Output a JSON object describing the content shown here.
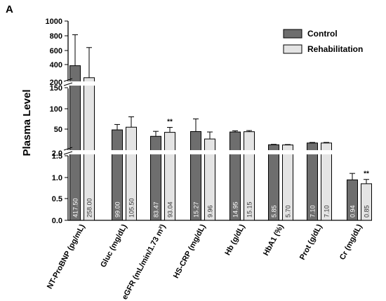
{
  "panel_label": "A",
  "colors": {
    "control": "#6e6e6e",
    "rehab": "#e4e4e4",
    "stroke": "#000000",
    "break_gap": "#ffffff"
  },
  "chart_data": {
    "type": "bar",
    "ylabel": "Plasma Level",
    "axis_breaks": true,
    "y_segments": [
      {
        "range": [
          0,
          1.5
        ],
        "ticks": [
          "0.0",
          "0.5",
          "1.0",
          "1.5"
        ]
      },
      {
        "range": [
          0,
          2.0
        ],
        "ticks": [
          "2.0"
        ]
      },
      {
        "range": [
          0,
          150
        ],
        "ticks": [
          "50",
          "100",
          "150"
        ]
      },
      {
        "range": [
          150,
          1000
        ],
        "ticks": [
          "200",
          "400",
          "600",
          "800",
          "1000"
        ]
      }
    ],
    "categories": [
      "NT-ProBNP (pg/mL)",
      "Gluc (mg/dL)",
      "eGFR (mL/min/1.73 m²)",
      "HS-CRP (mg/dL)",
      "Hb (g/dL)",
      "HbA1 (%)",
      "Prot (g/dL)",
      "Cr (mg/dL)"
    ],
    "series": [
      {
        "name": "Control",
        "values": [
          417.5,
          99.0,
          83.47,
          15.27,
          14.95,
          5.85,
          7.1,
          0.94
        ],
        "labels": [
          "417.50",
          "99.00",
          "83.47",
          "15.27",
          "14.95",
          "5.85",
          "7.10",
          "0.94"
        ],
        "errors": [
          410,
          13,
          12,
          9,
          0.8,
          0.3,
          0.4,
          0.15
        ]
      },
      {
        "name": "Rehabilitation",
        "values": [
          258.0,
          105.5,
          93.04,
          9.96,
          15.15,
          5.7,
          7.1,
          0.85
        ],
        "labels": [
          "258.00",
          "105.50",
          "93.04",
          "9.96",
          "15.15",
          "5.70",
          "7.10",
          "0.85"
        ],
        "errors": [
          400,
          25,
          12,
          5,
          0.8,
          0.3,
          0.4,
          0.1
        ]
      }
    ],
    "significance": [
      {
        "category": 2,
        "series": 1,
        "label": "**"
      },
      {
        "category": 7,
        "series": 1,
        "label": "**"
      }
    ],
    "legend": "top-right"
  }
}
